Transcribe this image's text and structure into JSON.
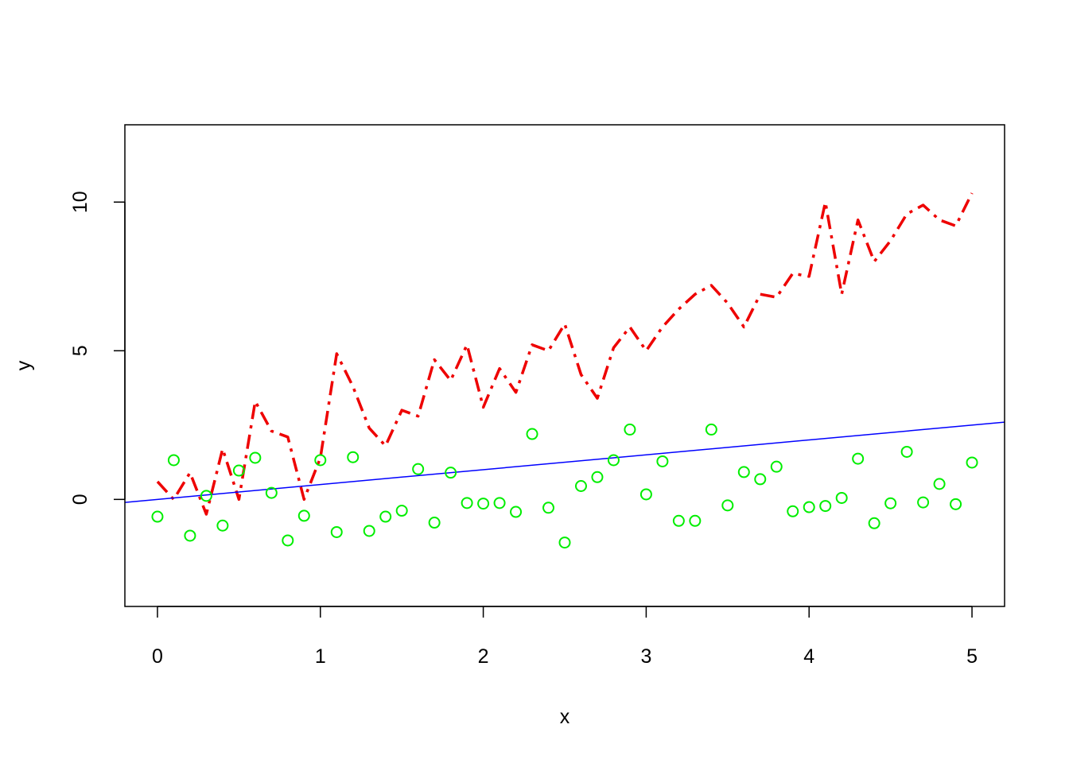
{
  "chart_data": {
    "type": "scatter",
    "xlabel": "x",
    "ylabel": "y",
    "xlim": [
      -0.2,
      5.2
    ],
    "ylim": [
      -3.6,
      12.6
    ],
    "grid": false,
    "legend": "none",
    "xticks": [
      "0",
      "1",
      "2",
      "3",
      "4",
      "5"
    ],
    "yticks": [
      "0",
      "5",
      "10"
    ],
    "colors": {
      "points": "#00ee00",
      "noisy_line": "#ee0000",
      "fit_line": "#0000ff",
      "axes": "#000000"
    },
    "x": [
      0.0,
      0.1,
      0.2,
      0.3,
      0.4,
      0.5,
      0.6,
      0.7,
      0.8,
      0.9,
      1.0,
      1.1,
      1.2,
      1.3,
      1.4,
      1.5,
      1.6,
      1.7,
      1.8,
      1.9,
      2.0,
      2.1,
      2.2,
      2.3,
      2.4,
      2.5,
      2.6,
      2.7,
      2.8,
      2.9,
      3.0,
      3.1,
      3.2,
      3.3,
      3.4,
      3.5,
      3.6,
      3.7,
      3.8,
      3.9,
      4.0,
      4.1,
      4.2,
      4.3,
      4.4,
      4.5,
      4.6,
      4.7,
      4.8,
      4.9,
      5.0
    ],
    "series": [
      {
        "style": "points",
        "values": [
          -0.58,
          1.32,
          -1.22,
          0.12,
          -0.88,
          0.97,
          1.4,
          0.22,
          -1.38,
          -0.55,
          1.32,
          -1.1,
          1.42,
          -1.06,
          -0.58,
          -0.38,
          1.02,
          -0.78,
          0.9,
          -0.12,
          -0.14,
          -0.12,
          -0.42,
          2.2,
          -0.28,
          -1.45,
          0.45,
          0.75,
          1.32,
          2.35,
          0.17,
          1.28,
          -0.72,
          -0.72,
          2.35,
          -0.2,
          0.92,
          0.68,
          1.1,
          -0.4,
          -0.26,
          -0.22,
          0.05,
          1.37,
          -0.8,
          -0.13,
          1.6,
          -0.1,
          0.52,
          -0.16,
          1.24
        ]
      },
      {
        "style": "dashdot-line",
        "values": [
          0.6,
          0.0,
          0.9,
          -0.5,
          1.7,
          0.0,
          3.3,
          2.3,
          2.1,
          0.0,
          1.4,
          4.9,
          3.8,
          2.4,
          1.8,
          3.0,
          2.8,
          4.7,
          4.0,
          5.2,
          3.1,
          4.4,
          3.6,
          5.2,
          5.0,
          5.9,
          4.2,
          3.4,
          5.1,
          5.8,
          5.0,
          5.8,
          6.4,
          6.9,
          7.2,
          6.6,
          5.8,
          6.9,
          6.8,
          7.6,
          7.5,
          10.0,
          6.9,
          9.4,
          8.0,
          8.7,
          9.6,
          9.9,
          9.4,
          9.2,
          10.3
        ]
      },
      {
        "style": "fit-line",
        "intercept": 0.0,
        "slope": 0.5
      }
    ]
  }
}
